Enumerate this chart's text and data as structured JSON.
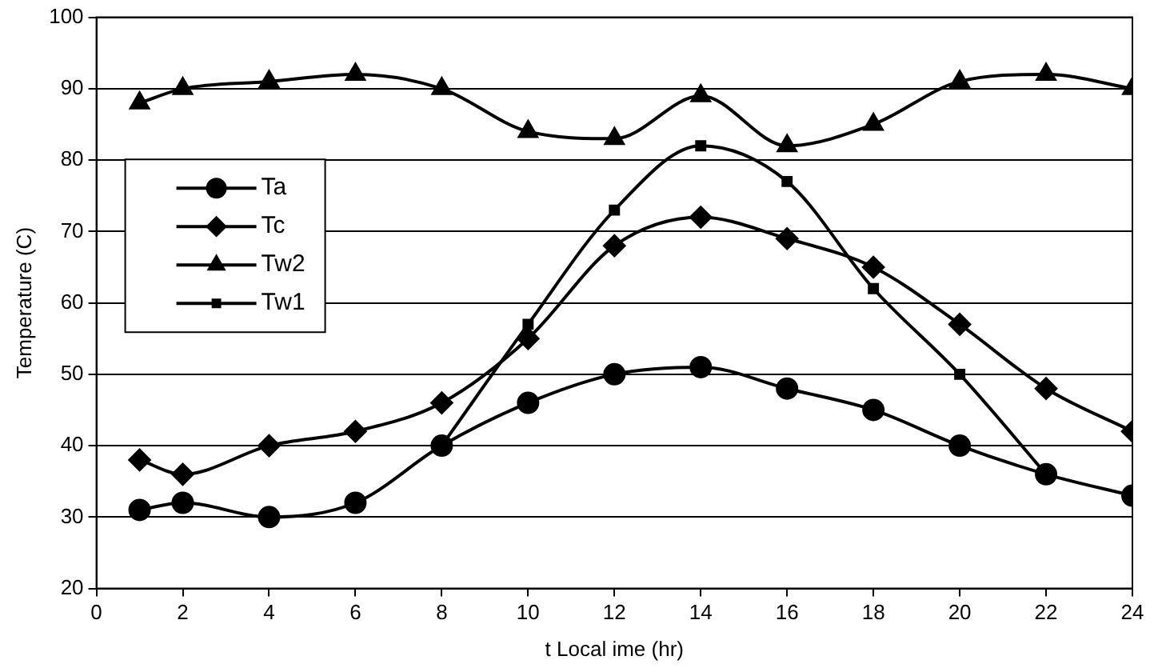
{
  "chart_data": {
    "type": "line",
    "xlabel": "t Local ime (hr)",
    "ylabel": "Temperature (C)",
    "x": [
      1,
      2,
      4,
      6,
      8,
      10,
      12,
      14,
      16,
      18,
      20,
      22,
      24
    ],
    "xlim": [
      0,
      24
    ],
    "xticks": [
      0,
      2,
      4,
      6,
      8,
      10,
      12,
      14,
      16,
      18,
      20,
      22,
      24
    ],
    "ylim": [
      20,
      100
    ],
    "yticks": [
      20,
      30,
      40,
      50,
      60,
      70,
      80,
      90,
      100
    ],
    "grid": "y",
    "legend": "left",
    "line_style": "solid",
    "series": [
      {
        "name": "Ta",
        "color": "#000000",
        "marker": "circle",
        "values": [
          31,
          32,
          30,
          32,
          40,
          46,
          50,
          51,
          48,
          45,
          40,
          36,
          33
        ]
      },
      {
        "name": "Tc",
        "color": "#000000",
        "marker": "diamond",
        "values": [
          38,
          36,
          40,
          42,
          46,
          55,
          68,
          72,
          69,
          65,
          57,
          48,
          42
        ]
      },
      {
        "name": "Tw2",
        "color": "#000000",
        "marker": "triangle",
        "values": [
          88,
          90,
          91,
          92,
          90,
          84,
          83,
          89,
          82,
          85,
          91,
          92,
          90
        ]
      },
      {
        "name": "Tw1",
        "color": "#000000",
        "marker": "square",
        "values": [
          null,
          null,
          null,
          null,
          40,
          57,
          73,
          82,
          77,
          62,
          50,
          36,
          null
        ]
      }
    ]
  }
}
